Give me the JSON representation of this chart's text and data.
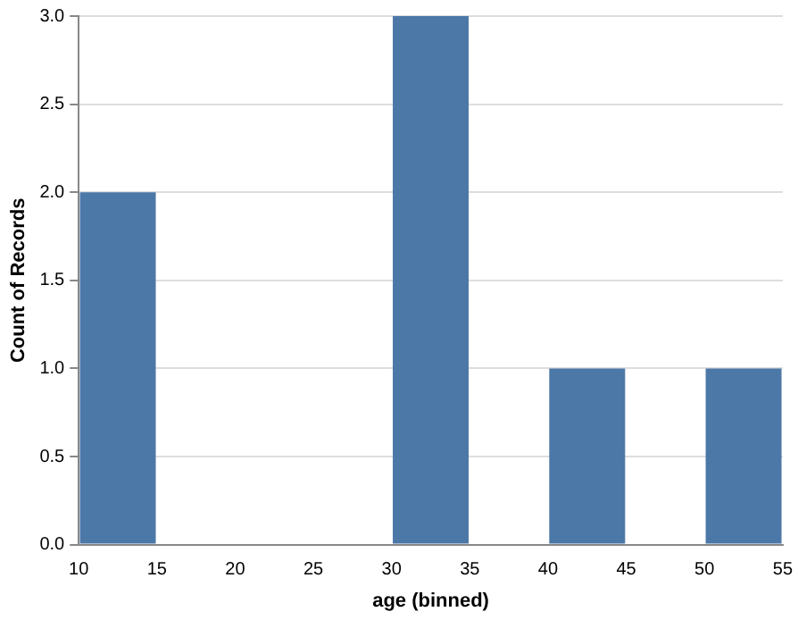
{
  "chart_data": {
    "type": "histogram",
    "xlabel": "age (binned)",
    "ylabel": "Count of Records",
    "bins": [
      10,
      15,
      20,
      25,
      30,
      35,
      40,
      45,
      50,
      55
    ],
    "values": [
      2,
      0,
      0,
      0,
      3,
      0,
      1,
      0,
      1
    ],
    "color": "#4c78a8",
    "xlim": [
      10,
      55
    ],
    "xticks": [
      10,
      15,
      20,
      25,
      30,
      35,
      40,
      45,
      50,
      55
    ],
    "ylim": [
      0,
      3
    ],
    "yticks": [
      {
        "value": 0,
        "label": "0.0"
      },
      {
        "value": 0.5,
        "label": "0.5"
      },
      {
        "value": 1,
        "label": "1.0"
      },
      {
        "value": 1.5,
        "label": "1.5"
      },
      {
        "value": 2,
        "label": "2.0"
      },
      {
        "value": 2.5,
        "label": "2.5"
      },
      {
        "value": 3,
        "label": "3.0"
      }
    ],
    "grid": "y"
  }
}
